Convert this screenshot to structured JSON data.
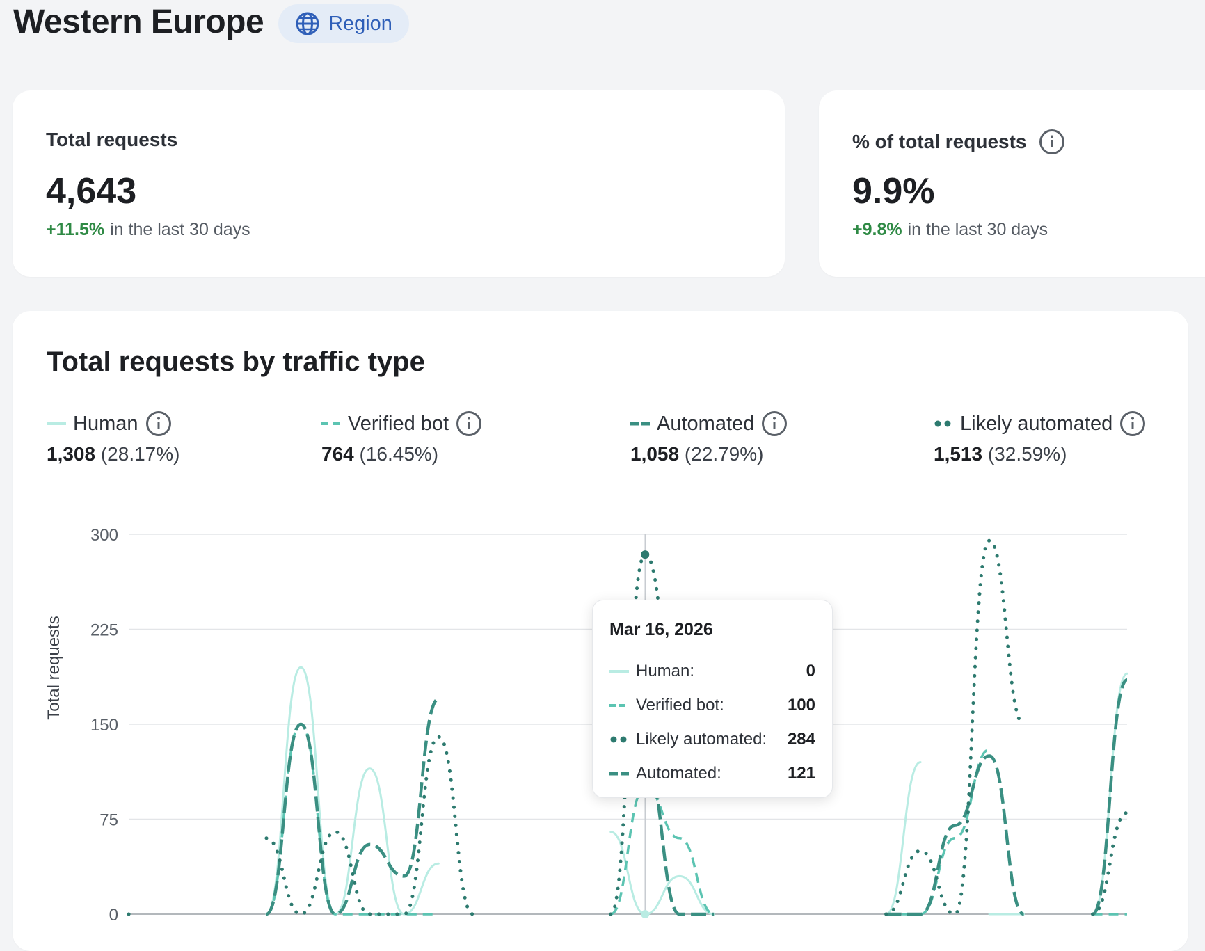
{
  "header": {
    "title": "Western Europe",
    "badge_label": "Region"
  },
  "stats": [
    {
      "label": "Total requests",
      "value": "4,643",
      "change": "+11.5%",
      "change_suffix": "in the last 30 days"
    },
    {
      "label": "% of total requests",
      "value": "9.9%",
      "change": "+9.8%",
      "change_suffix": "in the last 30 days"
    }
  ],
  "chart_card": {
    "title": "Total requests by traffic type",
    "legend": [
      {
        "name": "Human",
        "total": "1,308",
        "pct": "(28.17%)"
      },
      {
        "name": "Verified bot",
        "total": "764",
        "pct": "(16.45%)"
      },
      {
        "name": "Automated",
        "total": "1,058",
        "pct": "(22.79%)"
      },
      {
        "name": "Likely automated",
        "total": "1,513",
        "pct": "(32.59%)"
      }
    ],
    "tooltip": {
      "date": "Mar 16, 2026",
      "rows": [
        {
          "label": "Human:",
          "value": "0"
        },
        {
          "label": "Verified bot:",
          "value": "100"
        },
        {
          "label": "Likely automated:",
          "value": "284"
        },
        {
          "label": "Automated:",
          "value": "121"
        }
      ]
    }
  },
  "colors": {
    "human": "#b9ece3",
    "verified_bot": "#5cc4b2",
    "automated": "#3a8f82",
    "likely_automated": "#2d7a6f",
    "positive": "#2f8a45",
    "accent": "#2f5fb8"
  },
  "icons": {
    "badge": "globe-icon",
    "info": "info-icon"
  },
  "chart_data": {
    "type": "line",
    "ylabel": "Total requests",
    "ylim": [
      0,
      300
    ],
    "yticks": [
      "0",
      "75",
      "150",
      "225",
      "300"
    ],
    "grid": true,
    "x": [
      1,
      2,
      3,
      4,
      5,
      6,
      7,
      8,
      9,
      10,
      11,
      12,
      13,
      14,
      15,
      16,
      17,
      18,
      19,
      20,
      21,
      22,
      23,
      24,
      25,
      26,
      27,
      28,
      29,
      30
    ],
    "series": [
      {
        "name": "Human",
        "style": "solid",
        "values": [
          null,
          null,
          null,
          null,
          0,
          195,
          0,
          115,
          0,
          40,
          null,
          null,
          null,
          null,
          65,
          0,
          30,
          0,
          null,
          null,
          null,
          null,
          0,
          120,
          null,
          0,
          0,
          null,
          0,
          190
        ]
      },
      {
        "name": "Verified bot",
        "style": "dashed",
        "values": [
          null,
          null,
          null,
          null,
          0,
          150,
          0,
          0,
          0,
          0,
          null,
          null,
          null,
          null,
          0,
          100,
          60,
          0,
          null,
          null,
          null,
          null,
          0,
          0,
          60,
          130,
          null,
          null,
          0,
          0
        ]
      },
      {
        "name": "Automated",
        "style": "long-dashed",
        "values": [
          80,
          null,
          null,
          null,
          0,
          150,
          0,
          55,
          30,
          170,
          null,
          null,
          null,
          null,
          130,
          121,
          0,
          0,
          null,
          null,
          null,
          null,
          0,
          0,
          70,
          125,
          0,
          null,
          0,
          185
        ]
      },
      {
        "name": "Likely automated",
        "style": "dotted",
        "values": [
          0,
          null,
          null,
          null,
          60,
          0,
          65,
          0,
          0,
          140,
          0,
          null,
          null,
          null,
          0,
          284,
          150,
          null,
          null,
          null,
          null,
          null,
          0,
          50,
          0,
          295,
          150,
          null,
          0,
          80
        ]
      }
    ]
  }
}
